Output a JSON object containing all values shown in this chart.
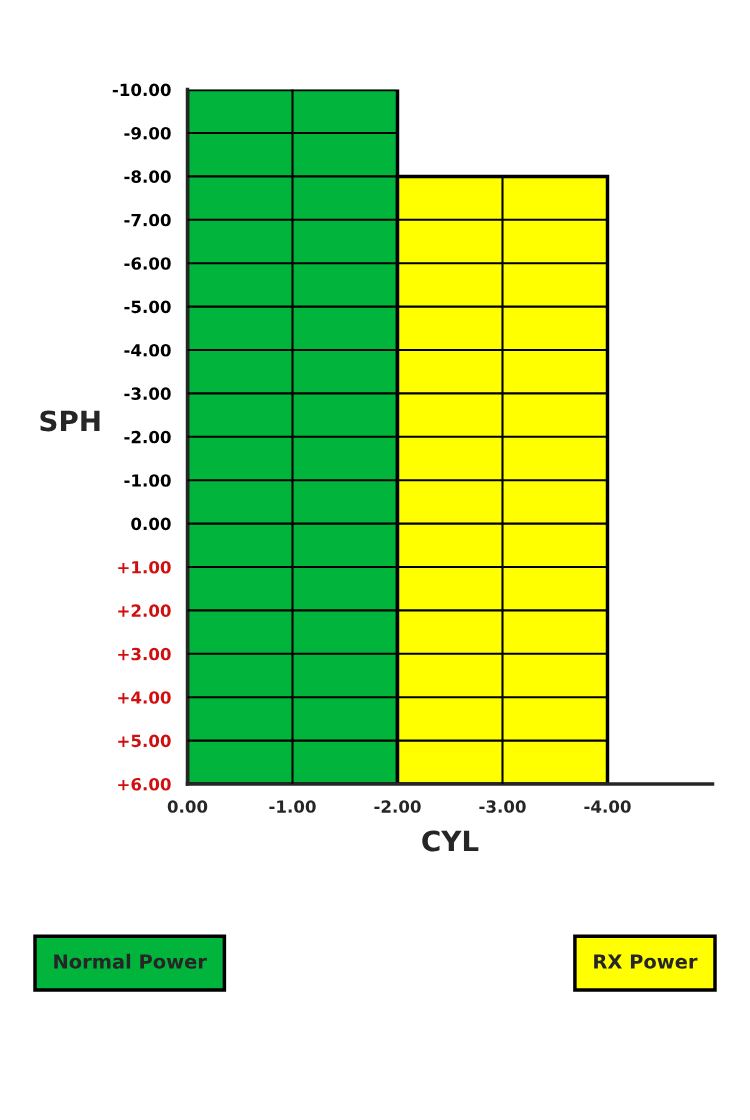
{
  "chart_data": {
    "type": "histogram",
    "xlabel": "CYL",
    "ylabel": "SPH",
    "series": [
      {
        "name": "Normal Power",
        "color": "#00b43c",
        "values": [
          -16,
          null
        ],
        "base": [
          6,
          null
        ]
      },
      {
        "name": "RX Power",
        "color": "#ffff00",
        "values": [
          null,
          -14
        ],
        "base": [
          null,
          6
        ]
      }
    ],
    "bins": [
      0,
      -2,
      -4
    ],
    "xlim": [
      0,
      -5
    ],
    "ylim": [
      6,
      -10
    ],
    "xticks": [
      {
        "value": 0,
        "label": "0.00"
      },
      {
        "value": -1,
        "label": "-1.00"
      },
      {
        "value": -2,
        "label": "-2.00"
      },
      {
        "value": -3,
        "label": "-3.00"
      },
      {
        "value": -4,
        "label": "-4.00"
      }
    ],
    "yticks": [
      {
        "value": -10,
        "label": "-10.00"
      },
      {
        "value": -9,
        "label": "-9.00"
      },
      {
        "value": -8,
        "label": "-8.00"
      },
      {
        "value": -7,
        "label": "-7.00"
      },
      {
        "value": -6,
        "label": "-6.00"
      },
      {
        "value": -5,
        "label": "-5.00"
      },
      {
        "value": -4,
        "label": "-4.00"
      },
      {
        "value": -3,
        "label": "-3.00"
      },
      {
        "value": -2,
        "label": "-2.00"
      },
      {
        "value": -1,
        "label": "-1.00"
      },
      {
        "value": 0,
        "label": "0.00"
      },
      {
        "value": 1,
        "label": "+1.00"
      },
      {
        "value": 2,
        "label": "+2.00"
      },
      {
        "value": 3,
        "label": "+3.00"
      },
      {
        "value": 4,
        "label": "+4.00"
      },
      {
        "value": 5,
        "label": "+5.00"
      },
      {
        "value": 6,
        "label": "+6.00"
      }
    ],
    "grid": true,
    "legend": "bottom"
  }
}
